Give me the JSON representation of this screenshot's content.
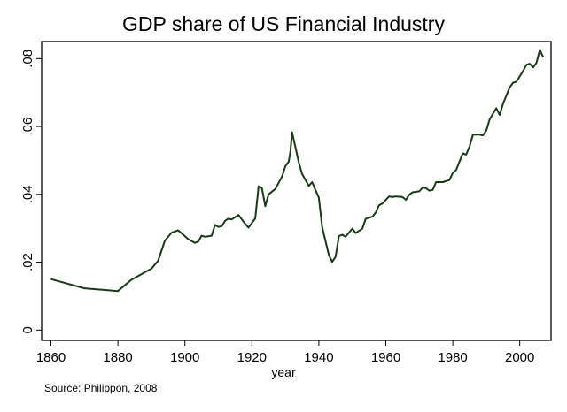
{
  "chart_data": {
    "type": "line",
    "title": "GDP share of US Financial Industry",
    "xlabel": "year",
    "ylabel": "",
    "note": "Source: Philippon, 2008",
    "xlim": [
      1857,
      2010
    ],
    "ylim": [
      -0.003,
      0.085
    ],
    "xticks": [
      1860,
      1880,
      1900,
      1920,
      1940,
      1960,
      1980,
      2000
    ],
    "yticks": [
      0,
      0.02,
      0.04,
      0.06,
      0.08
    ],
    "ytick_labels": [
      "0",
      ".02",
      ".04",
      ".06",
      ".08"
    ],
    "grid": false,
    "line_color": "#183a18",
    "x": [
      1860,
      1870,
      1880,
      1884,
      1890,
      1892,
      1894,
      1896,
      1898,
      1901,
      1903,
      1904,
      1905,
      1906,
      1908,
      1909,
      1910,
      1911,
      1912,
      1913,
      1914,
      1916,
      1918,
      1919,
      1921,
      1922,
      1923,
      1924,
      1925,
      1927,
      1929,
      1930,
      1931,
      1931.5,
      1932,
      1934,
      1935,
      1937,
      1938,
      1940,
      1941,
      1943,
      1944,
      1945,
      1946,
      1947,
      1948,
      1950,
      1951,
      1953,
      1954,
      1956,
      1957,
      1958,
      1959,
      1961,
      1962,
      1963,
      1965,
      1966,
      1967,
      1968,
      1970,
      1971,
      1972,
      1973,
      1974,
      1975,
      1977,
      1979,
      1980,
      1981,
      1983,
      1984,
      1985,
      1986,
      1988,
      1989,
      1990,
      1991,
      1993,
      1994,
      1995,
      1997,
      1998,
      1999,
      2001,
      2002,
      2003,
      2004,
      2005,
      2006,
      2007
    ],
    "y": [
      0.015,
      0.0123,
      0.0115,
      0.0148,
      0.0181,
      0.0204,
      0.0263,
      0.0287,
      0.0294,
      0.0268,
      0.0257,
      0.0261,
      0.0278,
      0.0275,
      0.0278,
      0.031,
      0.0304,
      0.0306,
      0.0322,
      0.0328,
      0.0326,
      0.0339,
      0.0313,
      0.0302,
      0.0329,
      0.0424,
      0.0419,
      0.0365,
      0.04,
      0.0416,
      0.0452,
      0.0483,
      0.0496,
      0.0526,
      0.0583,
      0.0495,
      0.046,
      0.0425,
      0.0436,
      0.039,
      0.0303,
      0.0221,
      0.0201,
      0.0216,
      0.0277,
      0.0281,
      0.0275,
      0.0299,
      0.0286,
      0.0299,
      0.0328,
      0.0334,
      0.0347,
      0.0368,
      0.0373,
      0.0394,
      0.0392,
      0.0394,
      0.0392,
      0.0384,
      0.0399,
      0.0406,
      0.0409,
      0.042,
      0.0418,
      0.0411,
      0.0413,
      0.0436,
      0.0436,
      0.0442,
      0.0463,
      0.0472,
      0.0521,
      0.0517,
      0.0541,
      0.0576,
      0.0576,
      0.0574,
      0.0588,
      0.0621,
      0.0654,
      0.0634,
      0.0667,
      0.0716,
      0.0729,
      0.0732,
      0.0764,
      0.0782,
      0.0785,
      0.0774,
      0.0788,
      0.0826,
      0.0804
    ]
  }
}
